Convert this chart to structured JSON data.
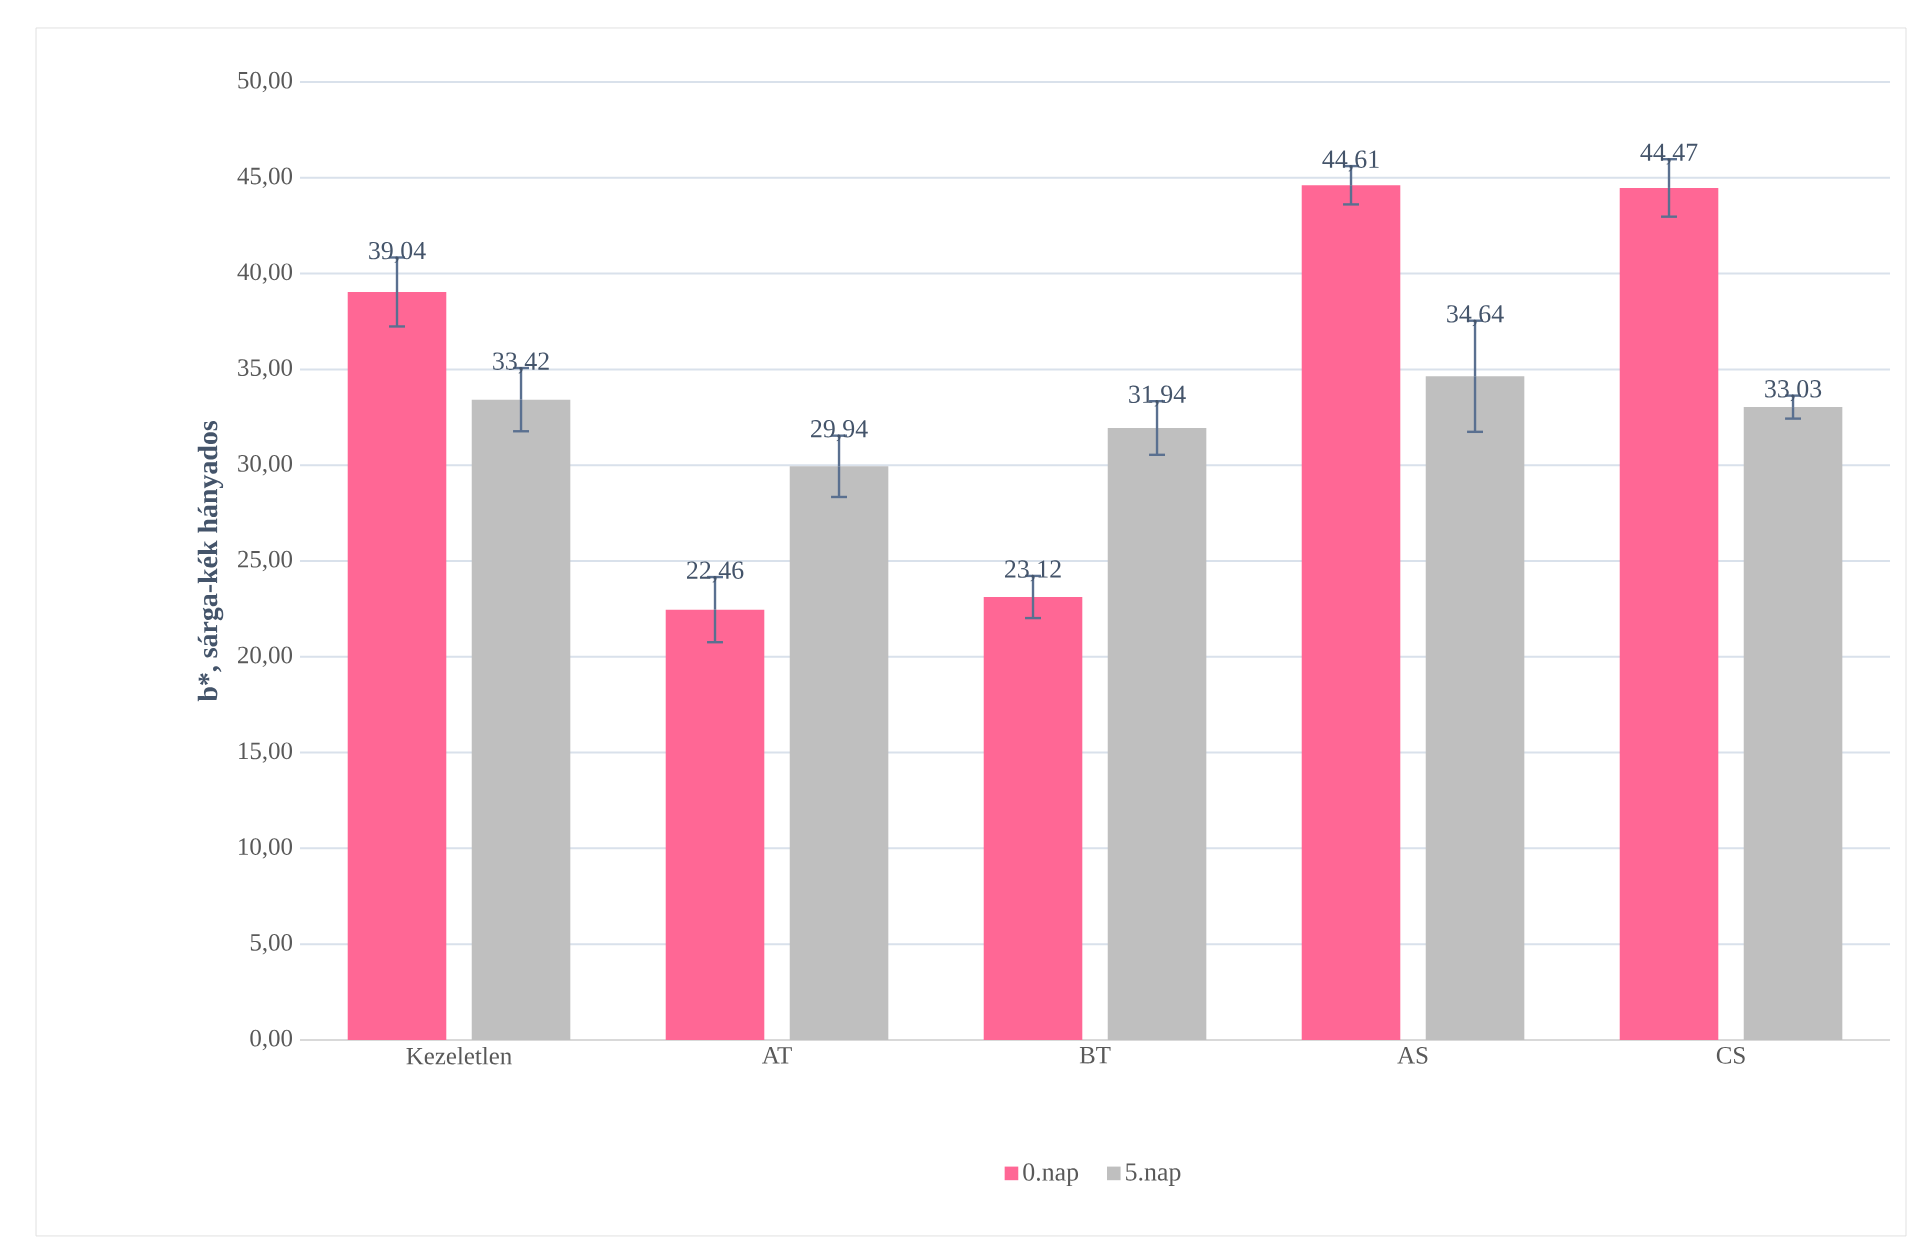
{
  "chart_data": {
    "type": "bar",
    "ylabel": "b*, sárga-kék hányados",
    "categories": [
      "Kezeletlen",
      "AT",
      "BT",
      "AS",
      "CS"
    ],
    "series": [
      {
        "name": "0.nap",
        "color": "#ff6795",
        "values": [
          39.04,
          22.46,
          23.12,
          44.61,
          44.47
        ],
        "errors": [
          1.8,
          1.7,
          1.1,
          1.0,
          1.5
        ],
        "value_labels": [
          "39,04",
          "22,46",
          "23,12",
          "44,61",
          "44,47"
        ]
      },
      {
        "name": "5.nap",
        "color": "#bfbfbf",
        "values": [
          33.42,
          29.94,
          31.94,
          34.64,
          33.03
        ],
        "errors": [
          1.65,
          1.6,
          1.4,
          2.9,
          0.6
        ],
        "value_labels": [
          "33,42",
          "29,94",
          "31,94",
          "34,64",
          "33,03"
        ]
      }
    ],
    "ylim": [
      0,
      50
    ],
    "yticks": [
      {
        "value": 0,
        "label": "0,00"
      },
      {
        "value": 5,
        "label": "5,00"
      },
      {
        "value": 10,
        "label": "10,00"
      },
      {
        "value": 15,
        "label": "15,00"
      },
      {
        "value": 20,
        "label": "20,00"
      },
      {
        "value": 25,
        "label": "25,00"
      },
      {
        "value": 30,
        "label": "30,00"
      },
      {
        "value": 35,
        "label": "35,00"
      },
      {
        "value": 40,
        "label": "40,00"
      },
      {
        "value": 45,
        "label": "45,00"
      },
      {
        "value": 50,
        "label": "50,00"
      }
    ],
    "grid": "y",
    "legend": "bottom"
  }
}
